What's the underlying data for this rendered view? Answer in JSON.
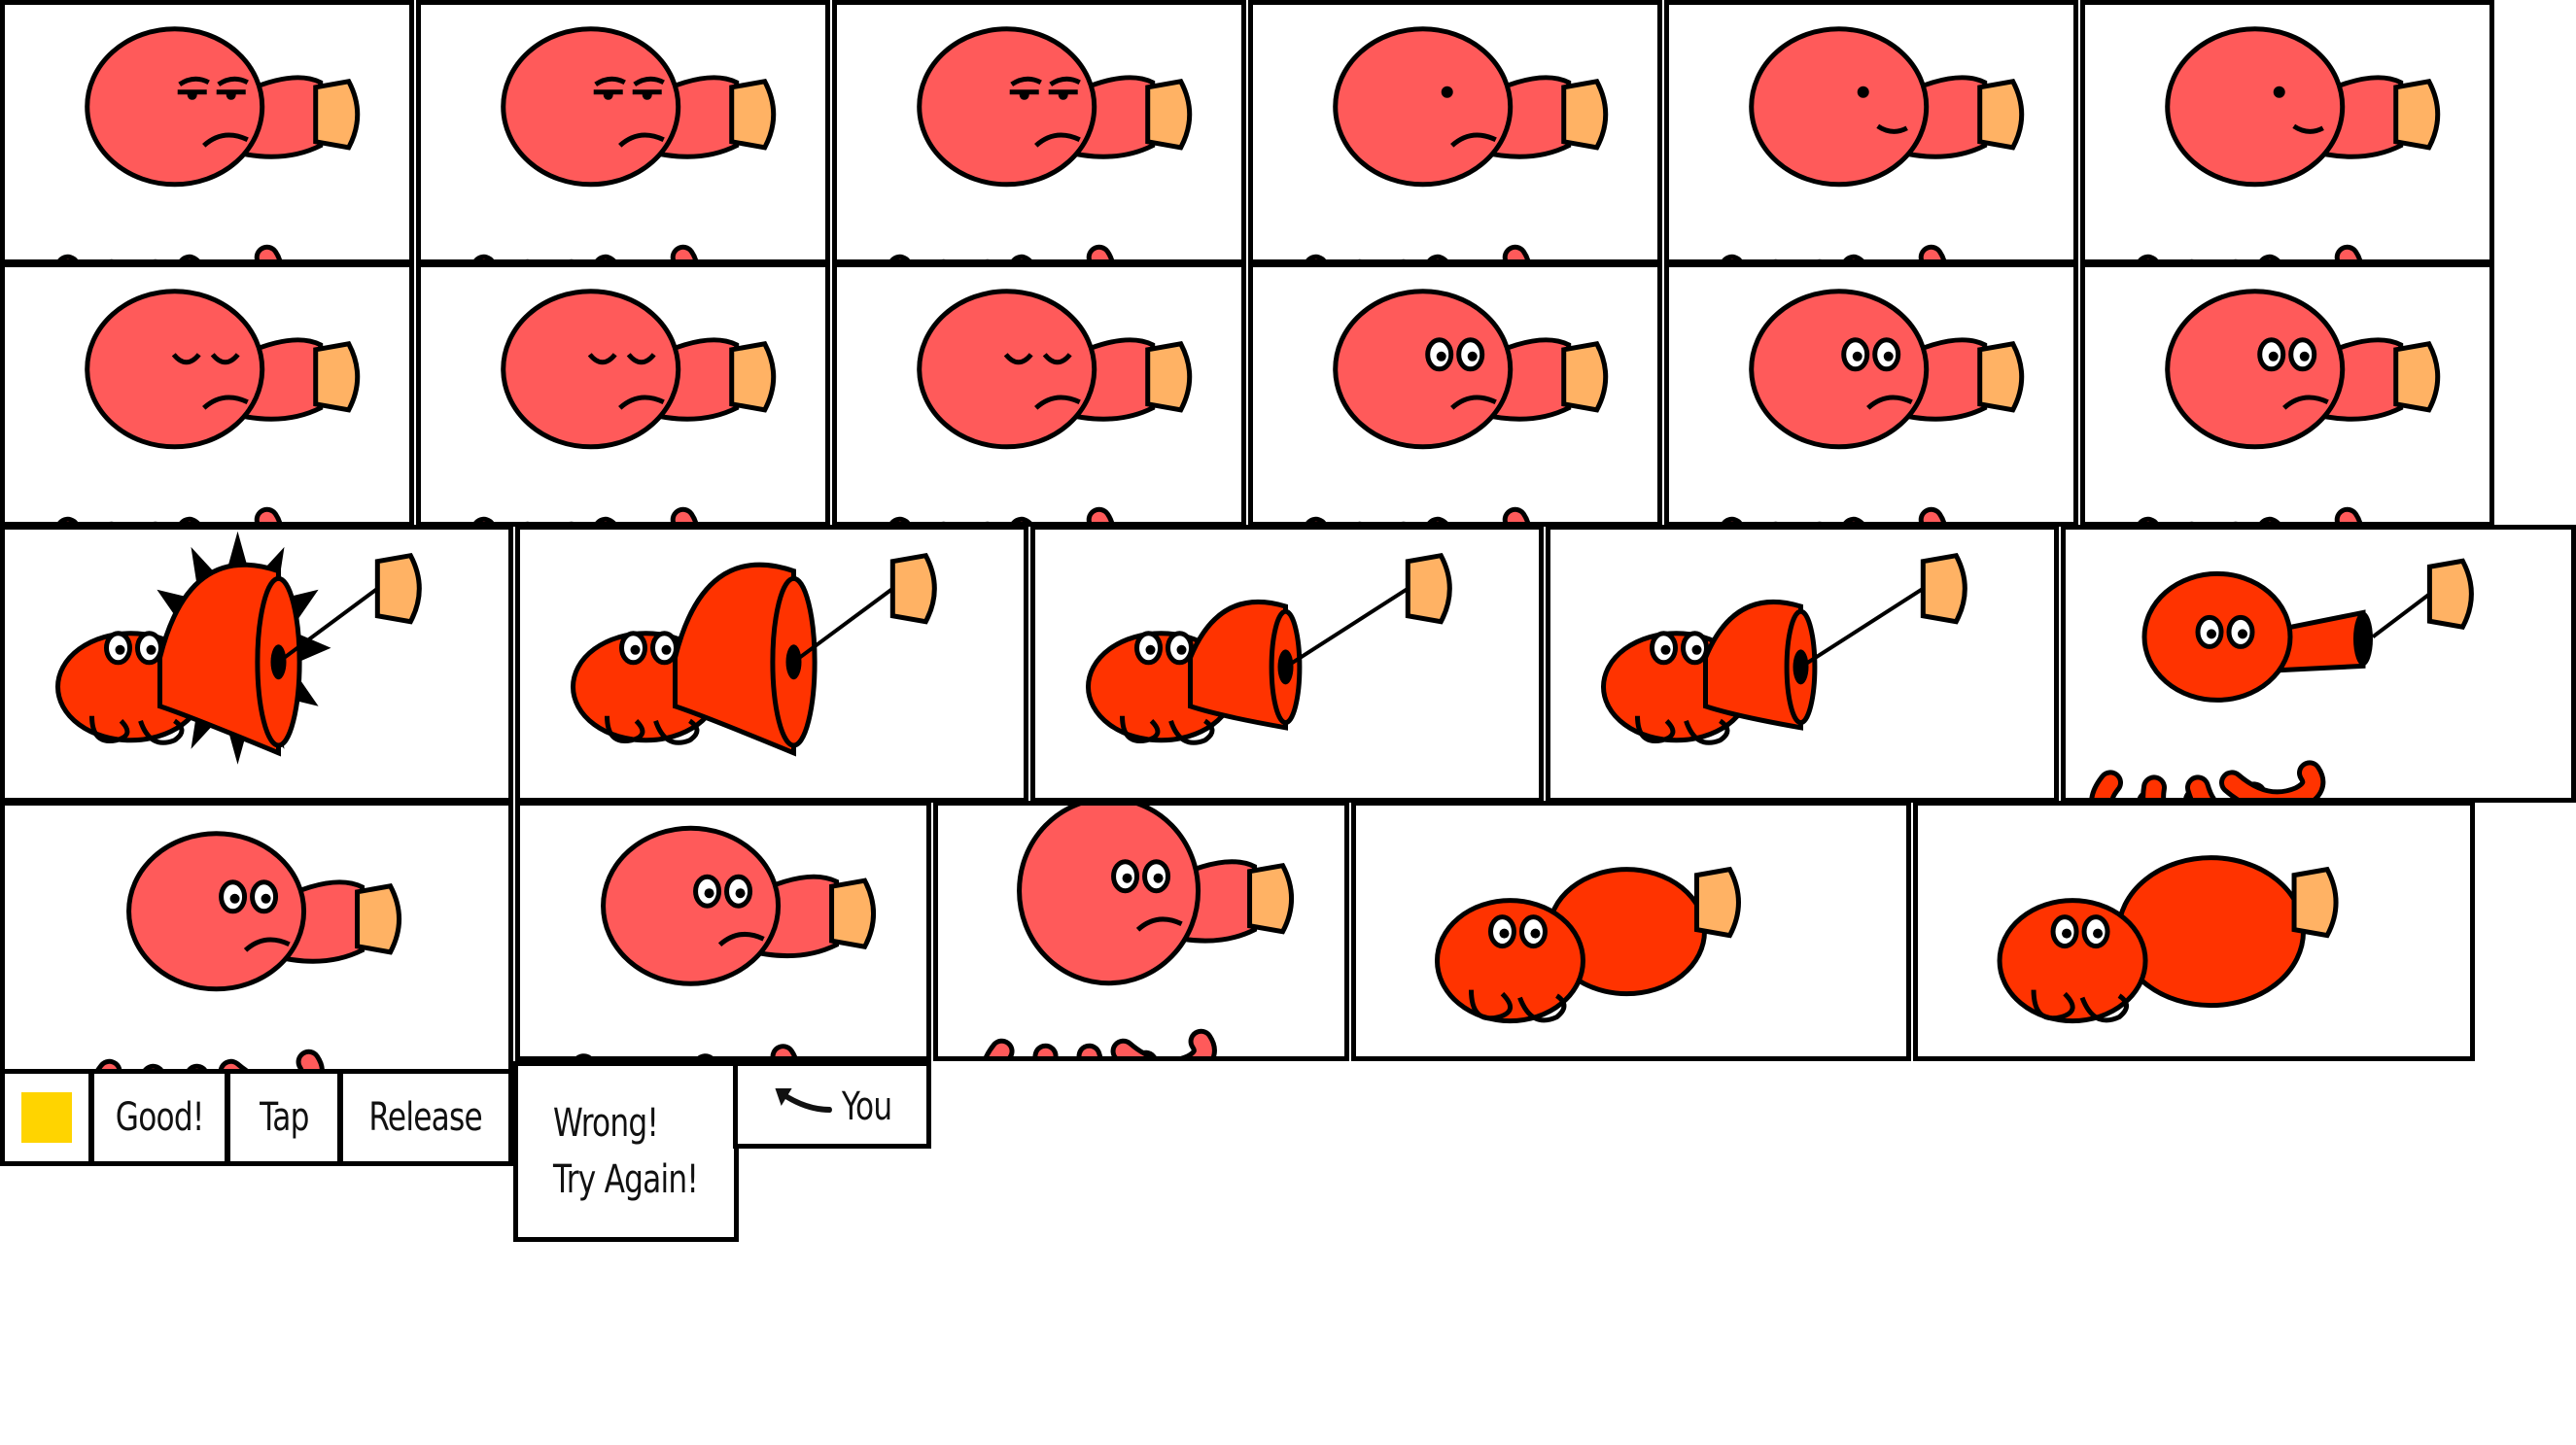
{
  "frames": [
    {
      "pose": "normal",
      "eyes": "sleepy",
      "mouth": "frown"
    },
    {
      "pose": "normal",
      "eyes": "sleepy",
      "mouth": "frown"
    },
    {
      "pose": "normal",
      "eyes": "sleepy",
      "mouth": "frown"
    },
    {
      "pose": "normal",
      "eyes": "dot",
      "mouth": "frown"
    },
    {
      "pose": "normal",
      "eyes": "dot",
      "mouth": "flat"
    },
    {
      "pose": "normal",
      "eyes": "dot",
      "mouth": "flat"
    },
    {
      "pose": "normal",
      "eyes": "closed",
      "mouth": "frown"
    },
    {
      "pose": "normal",
      "eyes": "closed",
      "mouth": "frown"
    },
    {
      "pose": "normal",
      "eyes": "closed",
      "mouth": "frown"
    },
    {
      "pose": "normal",
      "eyes": "open",
      "mouth": "frown"
    },
    {
      "pose": "normal",
      "eyes": "open",
      "mouth": "frown"
    },
    {
      "pose": "normal",
      "eyes": "open",
      "mouth": "frown"
    },
    {
      "pose": "burst",
      "eyes": "open",
      "mouth": "none"
    },
    {
      "pose": "horn-big",
      "eyes": "open",
      "mouth": "none"
    },
    {
      "pose": "horn-mid",
      "eyes": "open",
      "mouth": "none"
    },
    {
      "pose": "horn-mid",
      "eyes": "open",
      "mouth": "none"
    },
    {
      "pose": "release",
      "eyes": "open",
      "mouth": "none"
    },
    {
      "pose": "normal",
      "eyes": "open",
      "mouth": "frown"
    },
    {
      "pose": "normal",
      "eyes": "open",
      "mouth": "frown"
    },
    {
      "pose": "tall",
      "eyes": "open",
      "mouth": "frown"
    },
    {
      "pose": "inflate",
      "eyes": "open",
      "mouth": "none"
    },
    {
      "pose": "inflate-big",
      "eyes": "open",
      "mouth": "none"
    }
  ],
  "labels": {
    "swatch_color": "#FFD400",
    "good": "Good!",
    "tap": "Tap",
    "release": "Release",
    "wrong_line1": "Wrong!",
    "wrong_line2": "Try Again!",
    "you": "You",
    "you_arrow_icon": "arrow-left-icon"
  },
  "colors": {
    "octopus_body": "#FF5A5A",
    "octopus_dark": "#FF3300",
    "cork": "#FFB264",
    "outline": "#000000",
    "frame_border": "#000000"
  }
}
